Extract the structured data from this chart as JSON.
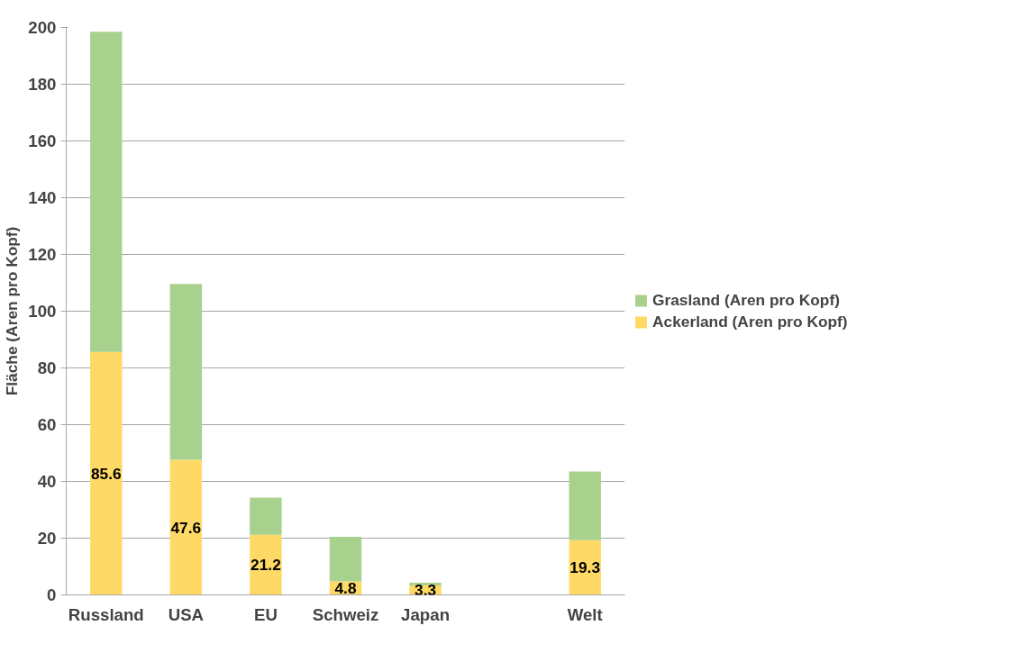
{
  "chart_data": {
    "type": "bar",
    "stacked": true,
    "ylabel": "Fläche (Aren pro Kopf)",
    "categories": [
      "Russland",
      "USA",
      "EU",
      "Schweiz",
      "Japan",
      null,
      "Welt"
    ],
    "series": [
      {
        "name": "Ackerland (Aren pro Kopf)",
        "color": "#ffd966",
        "values": [
          85.6,
          47.6,
          21.2,
          4.8,
          3.3,
          null,
          19.3
        ],
        "value_labels": [
          "85.6",
          "47.6",
          "21.2",
          "4.8",
          "3.3",
          null,
          "19.3"
        ]
      },
      {
        "name": "Grasland (Aren pro Kopf)",
        "color": "#a9d18e",
        "values": [
          112.9,
          62.0,
          13.1,
          15.7,
          1.0,
          null,
          24.2
        ]
      }
    ],
    "ylim": [
      0,
      200
    ],
    "yticks": [
      0,
      20,
      40,
      60,
      80,
      100,
      120,
      140,
      160,
      180,
      200
    ],
    "grid": "y",
    "legend": "right"
  }
}
